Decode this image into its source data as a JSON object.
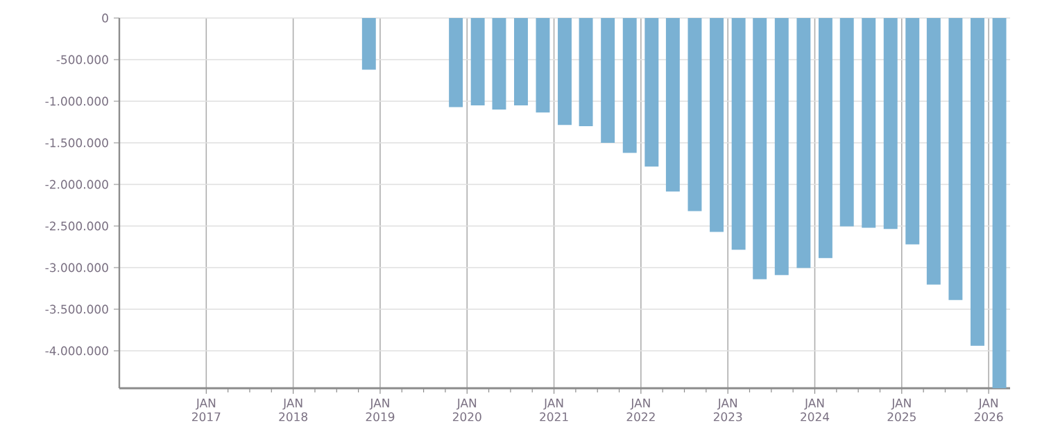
{
  "chart_data": {
    "type": "bar",
    "color": "#7ab1d3",
    "grid": true,
    "x": [
      "2018-11-15",
      "2019-11-15",
      "2020-02-15",
      "2020-05-15",
      "2020-08-15",
      "2020-11-15",
      "2021-02-15",
      "2021-05-15",
      "2021-08-15",
      "2021-11-15",
      "2022-02-15",
      "2022-05-15",
      "2022-08-15",
      "2022-11-15",
      "2023-02-15",
      "2023-05-15",
      "2023-08-15",
      "2023-11-15",
      "2024-02-15",
      "2024-05-15",
      "2024-08-15",
      "2024-11-15",
      "2025-02-15",
      "2025-05-15",
      "2025-08-15",
      "2025-11-15",
      "2026-02-15"
    ],
    "values": [
      -620000,
      -1070000,
      -1050000,
      -1100000,
      -1050000,
      -1135000,
      -1285000,
      -1300000,
      -1500000,
      -1620000,
      -1785000,
      -2085000,
      -2320000,
      -2570000,
      -2785000,
      -3140000,
      -3090000,
      -3005000,
      -2885000,
      -2505000,
      -2520000,
      -2535000,
      -2720000,
      -3205000,
      -3390000,
      -3940000,
      -4450000
    ],
    "xlim": [
      "2016-01-01",
      "2026-04-01"
    ],
    "xticks": [
      {
        "value": "2017-01-01",
        "label": "JAN 2017"
      },
      {
        "value": "2018-01-01",
        "label": "JAN 2018"
      },
      {
        "value": "2019-01-01",
        "label": "JAN 2019"
      },
      {
        "value": "2020-01-01",
        "label": "JAN 2020"
      },
      {
        "value": "2021-01-01",
        "label": "JAN 2021"
      },
      {
        "value": "2022-01-01",
        "label": "JAN 2022"
      },
      {
        "value": "2023-01-01",
        "label": "JAN 2023"
      },
      {
        "value": "2024-01-01",
        "label": "JAN 2024"
      },
      {
        "value": "2025-01-01",
        "label": "JAN 2025"
      },
      {
        "value": "2026-01-01",
        "label": "JAN 2026"
      }
    ],
    "ylim": [
      -4450000,
      0
    ],
    "yticks": [
      0,
      {
        "value": -500000,
        "label": "-500.000"
      },
      {
        "value": -1000000,
        "label": "-1.000.000"
      },
      {
        "value": -1500000,
        "label": "-1.500.000"
      },
      {
        "value": -2000000,
        "label": "-2.000.000"
      },
      {
        "value": -2500000,
        "label": "-2.500.000"
      },
      {
        "value": -3000000,
        "label": "-3.000.000"
      },
      {
        "value": -3500000,
        "label": "-3.500.000"
      },
      {
        "value": -4000000,
        "label": "-4.000.000"
      }
    ]
  }
}
